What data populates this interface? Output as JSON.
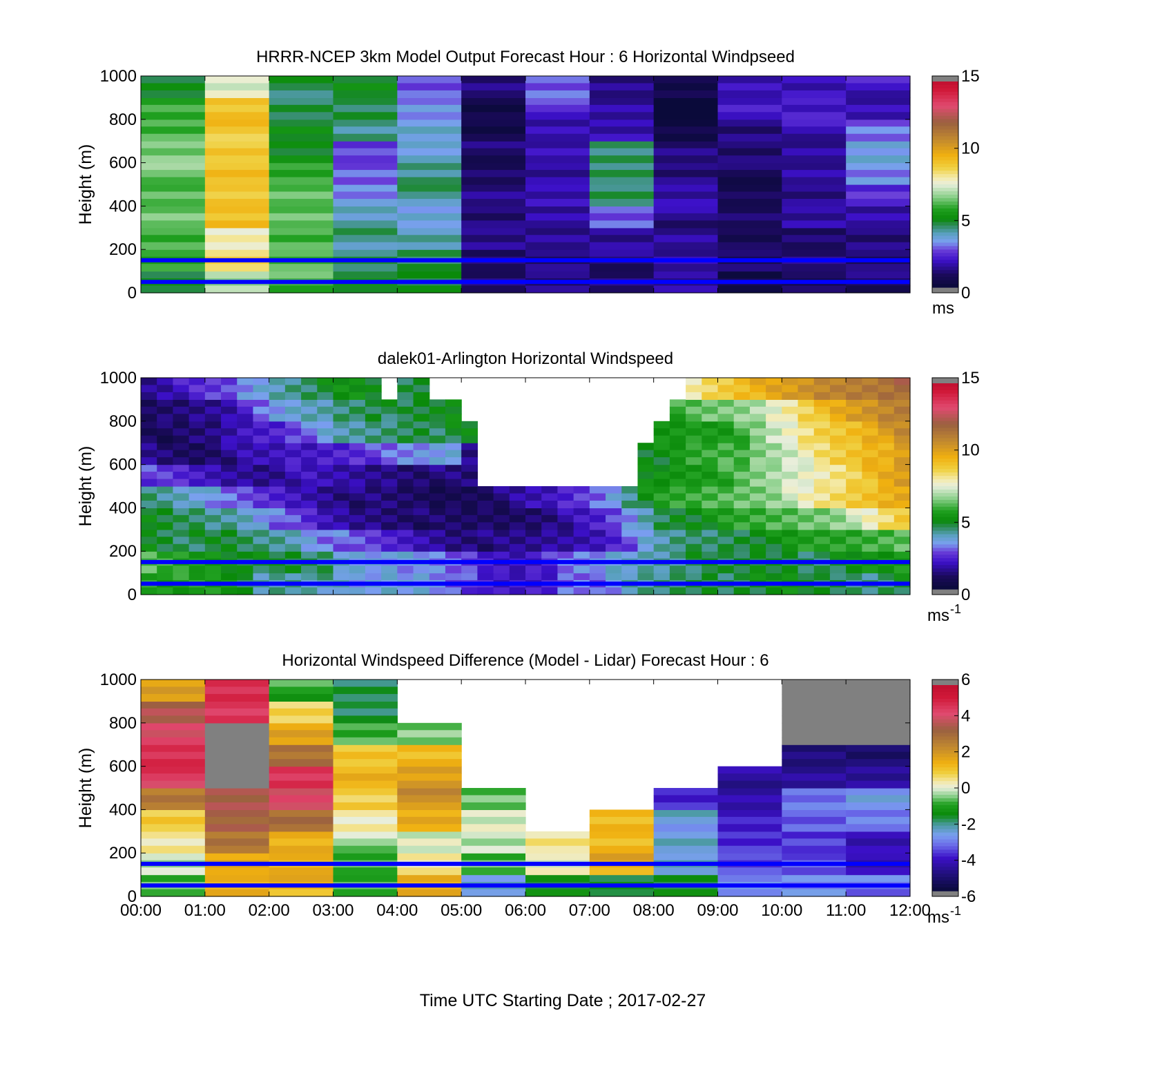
{
  "figure": {
    "xlabel": "Time UTC  Starting Date ; 2017-02-27",
    "x_tick_labels": [
      "00:00",
      "01:00",
      "02:00",
      "03:00",
      "04:00",
      "05:00",
      "06:00",
      "07:00",
      "08:00",
      "09:00",
      "10:00",
      "11:00",
      "12:00"
    ],
    "reference_line_color": "#0000ff",
    "missing_color": "#808080"
  },
  "chart_data": [
    {
      "type": "heatmap",
      "title": "HRRR-NCEP 3km Model Output   Forecast Hour : 6 Horizontal Windpseed",
      "ylabel": "Height (m)",
      "ylim": [
        0,
        1000
      ],
      "y_tick_labels": [
        "0",
        "200",
        "400",
        "600",
        "800",
        "1000"
      ],
      "colorbar": {
        "min": 0,
        "max": 15,
        "ticks": [
          "0",
          "5",
          "10",
          "15"
        ],
        "unit": "ms",
        "unit_sup": "",
        "scale": "speed"
      },
      "reference_lines_m": [
        150,
        50
      ],
      "x_hours": [
        0,
        1,
        2,
        3,
        4,
        5,
        6,
        7,
        8,
        9,
        10,
        11
      ],
      "heights_m": [
        50,
        150,
        250,
        350,
        450,
        550,
        650,
        750,
        850,
        950
      ],
      "values": [
        [
          5.0,
          7.0,
          6.0,
          4.8,
          4.6,
          1.0,
          1.2,
          1.2,
          1.6,
          0.6,
          1.0,
          1.0
        ],
        [
          5.5,
          8.5,
          6.0,
          4.5,
          4.6,
          1.2,
          1.4,
          1.2,
          1.4,
          0.8,
          1.2,
          1.0
        ],
        [
          6.0,
          8.0,
          6.2,
          4.2,
          3.8,
          1.2,
          1.4,
          1.4,
          1.6,
          0.8,
          1.2,
          1.4
        ],
        [
          6.2,
          9.0,
          6.2,
          3.8,
          3.6,
          1.2,
          1.8,
          3.0,
          1.4,
          0.8,
          1.4,
          1.6
        ],
        [
          6.2,
          9.0,
          6.4,
          3.4,
          4.2,
          1.2,
          1.6,
          4.4,
          1.6,
          0.8,
          1.4,
          2.6
        ],
        [
          6.4,
          9.0,
          5.6,
          2.8,
          4.2,
          1.0,
          1.6,
          4.6,
          1.4,
          0.8,
          1.4,
          3.0
        ],
        [
          6.4,
          9.0,
          5.0,
          2.8,
          3.8,
          1.0,
          1.6,
          4.2,
          1.2,
          1.0,
          1.6,
          3.6
        ],
        [
          6.2,
          9.0,
          4.8,
          4.0,
          3.6,
          0.4,
          1.8,
          1.8,
          0.6,
          1.4,
          1.8,
          2.8
        ],
        [
          5.8,
          9.0,
          4.6,
          4.6,
          3.4,
          0.6,
          2.4,
          1.4,
          -1.0,
          2.0,
          2.0,
          1.8
        ],
        [
          5.0,
          7.6,
          4.6,
          4.8,
          2.6,
          1.2,
          2.8,
          1.4,
          0.6,
          2.0,
          2.0,
          2.0
        ]
      ]
    },
    {
      "type": "heatmap",
      "title": "dalek01-Arlington  Horizontal Windspeed",
      "ylabel": "Height (m)",
      "ylim": [
        0,
        1000
      ],
      "y_tick_labels": [
        "0",
        "200",
        "400",
        "600",
        "800",
        "1000"
      ],
      "colorbar": {
        "min": 0,
        "max": 15,
        "ticks": [
          "0",
          "5",
          "10",
          "15"
        ],
        "unit": "ms",
        "unit_sup": "-1",
        "scale": "speed"
      },
      "reference_lines_m": [
        150,
        50
      ],
      "time_step_h": 0.25,
      "height_step_m": 100,
      "heights_m": [
        50,
        150,
        250,
        350,
        450,
        550,
        650,
        750,
        850,
        950
      ],
      "values": [
        [
          5.8,
          5.6,
          5.5,
          5.4,
          5.3,
          5.2,
          4.6,
          4.0,
          4.2,
          4.3,
          4.1,
          4.0,
          3.6,
          3.2,
          3.4,
          3.6,
          3.5,
          3.6,
          3.4,
          3.0,
          2.6,
          2.0,
          1.8,
          1.9,
          2.0,
          2.2,
          3.0,
          3.2,
          3.0,
          3.4,
          3.8,
          4.0,
          4.2,
          4.4,
          4.6,
          4.8,
          4.6,
          4.8,
          4.9,
          5.0,
          5.0,
          4.8,
          4.6,
          4.6,
          4.4,
          4.4,
          4.6,
          4.8
        ],
        [
          6.0,
          5.8,
          5.6,
          5.5,
          5.4,
          5.2,
          5.0,
          4.8,
          4.6,
          4.6,
          4.4,
          4.4,
          3.8,
          3.6,
          3.6,
          3.6,
          3.4,
          3.2,
          3.0,
          2.8,
          2.6,
          2.2,
          2.0,
          2.0,
          2.2,
          2.4,
          2.8,
          3.0,
          3.2,
          3.6,
          3.8,
          4.0,
          4.2,
          4.4,
          4.6,
          4.6,
          4.4,
          4.6,
          4.8,
          4.8,
          4.8,
          4.6,
          4.6,
          4.8,
          5.0,
          5.0,
          5.2,
          5.4
        ],
        [
          5.0,
          4.8,
          4.6,
          4.6,
          4.6,
          4.6,
          4.4,
          4.2,
          4.2,
          4.0,
          3.6,
          3.2,
          3.0,
          2.6,
          2.4,
          2.2,
          2.0,
          1.8,
          1.6,
          1.4,
          1.4,
          1.2,
          1.2,
          1.2,
          1.3,
          1.5,
          1.6,
          1.8,
          2.0,
          2.4,
          2.8,
          3.4,
          3.8,
          4.2,
          4.4,
          4.4,
          4.6,
          4.8,
          5.0,
          5.0,
          5.2,
          5.4,
          5.6,
          5.6,
          5.8,
          6.0,
          6.2,
          6.4
        ],
        [
          4.8,
          4.6,
          4.4,
          4.4,
          4.2,
          4.2,
          4.0,
          3.6,
          3.0,
          2.6,
          2.2,
          1.8,
          1.6,
          1.4,
          1.4,
          1.3,
          1.2,
          1.0,
          0.9,
          0.8,
          0.8,
          0.9,
          0.9,
          1.0,
          1.2,
          1.4,
          1.6,
          1.8,
          2.0,
          2.6,
          3.2,
          4.0,
          4.6,
          5.0,
          5.0,
          5.2,
          5.4,
          5.6,
          5.8,
          6.0,
          6.2,
          6.4,
          6.6,
          6.8,
          7.2,
          7.6,
          8.2,
          8.8
        ],
        [
          4.4,
          4.2,
          4.0,
          3.8,
          3.4,
          2.8,
          2.6,
          2.4,
          2.2,
          2.0,
          1.8,
          1.6,
          1.4,
          1.2,
          1.1,
          1.0,
          0.9,
          0.8,
          0.7,
          0.8,
          0.9,
          1.0,
          1.2,
          1.4,
          1.6,
          1.8,
          2.2,
          2.6,
          3.0,
          3.6,
          4.4,
          5.0,
          5.4,
          5.6,
          5.8,
          6.0,
          6.2,
          6.4,
          6.6,
          6.8,
          7.2,
          7.6,
          8.0,
          8.4,
          8.8,
          9.2,
          9.6,
          10.0
        ],
        [
          2.6,
          2.4,
          2.2,
          2.0,
          1.8,
          1.6,
          1.6,
          1.5,
          1.6,
          1.8,
          1.8,
          1.6,
          1.6,
          1.5,
          1.4,
          1.4,
          1.3,
          1.2,
          1.2,
          1.1,
          1.0,
          null,
          null,
          null,
          null,
          null,
          null,
          null,
          null,
          null,
          null,
          5.0,
          5.2,
          5.4,
          5.6,
          5.6,
          5.8,
          6.0,
          6.4,
          6.8,
          7.2,
          7.6,
          8.0,
          8.4,
          8.8,
          9.2,
          9.6,
          10.0
        ],
        [
          1.4,
          1.2,
          1.0,
          1.0,
          1.2,
          1.4,
          1.6,
          1.6,
          1.8,
          2.0,
          2.0,
          2.2,
          2.4,
          2.6,
          2.6,
          2.8,
          3.0,
          3.2,
          3.4,
          3.6,
          1.4,
          null,
          null,
          null,
          null,
          null,
          null,
          null,
          null,
          null,
          null,
          5.0,
          5.0,
          5.2,
          5.6,
          5.8,
          6.0,
          6.0,
          6.6,
          7.0,
          7.4,
          7.8,
          8.2,
          8.6,
          9.0,
          9.4,
          9.6,
          10.2
        ],
        [
          1.0,
          0.8,
          0.8,
          1.0,
          1.2,
          1.6,
          2.0,
          2.2,
          2.4,
          2.8,
          3.0,
          3.4,
          3.8,
          4.0,
          4.2,
          4.4,
          4.6,
          4.8,
          4.6,
          4.8,
          4.8,
          null,
          null,
          null,
          null,
          null,
          null,
          null,
          null,
          null,
          null,
          null,
          5.2,
          5.4,
          5.6,
          5.6,
          5.6,
          6.0,
          6.4,
          7.0,
          7.6,
          8.2,
          8.8,
          9.0,
          9.4,
          9.8,
          10.2,
          10.6
        ],
        [
          0.8,
          1.0,
          1.2,
          1.4,
          1.6,
          1.8,
          2.2,
          2.8,
          3.2,
          3.6,
          3.8,
          4.0,
          4.4,
          4.6,
          4.8,
          4.6,
          4.4,
          4.6,
          4.8,
          5.0,
          null,
          null,
          null,
          null,
          null,
          null,
          null,
          null,
          null,
          null,
          null,
          null,
          null,
          5.8,
          6.0,
          6.2,
          6.4,
          6.6,
          7.0,
          7.6,
          8.2,
          8.8,
          9.2,
          9.6,
          10.0,
          10.4,
          10.8,
          11.2
        ],
        [
          1.6,
          1.8,
          2.0,
          2.2,
          2.4,
          2.6,
          3.2,
          3.6,
          4.0,
          4.4,
          4.6,
          4.8,
          5.0,
          5.0,
          4.8,
          null,
          4.6,
          4.8,
          null,
          null,
          null,
          null,
          null,
          null,
          null,
          null,
          null,
          null,
          null,
          null,
          null,
          null,
          null,
          null,
          8.0,
          8.6,
          9.0,
          9.4,
          9.6,
          9.8,
          10.0,
          10.4,
          10.8,
          11.0,
          11.2,
          11.4,
          11.6,
          11.8
        ]
      ]
    },
    {
      "type": "heatmap",
      "title": "Horizontal Windspeed Difference (Model - Lidar) Forecast Hour : 6",
      "ylabel": "Height (m)",
      "ylim": [
        0,
        1000
      ],
      "y_tick_labels": [
        "0",
        "200",
        "400",
        "600",
        "800",
        "1000"
      ],
      "colorbar": {
        "min": -6,
        "max": 6,
        "ticks": [
          "-6",
          "-4",
          "-2",
          "0",
          "2",
          "4",
          "6"
        ],
        "unit": "ms",
        "unit_sup": "-1",
        "scale": "diff"
      },
      "reference_lines_m": [
        150,
        50
      ],
      "x_hours": [
        0,
        1,
        2,
        3,
        4,
        5,
        6,
        7,
        8,
        9,
        10,
        11
      ],
      "heights_m": [
        50,
        150,
        250,
        350,
        450,
        550,
        650,
        750,
        850,
        950
      ],
      "values": [
        [
          -0.6,
          1.6,
          1.4,
          -1.0,
          1.4,
          -2.6,
          -1.6,
          -1.6,
          -1.6,
          -2.8,
          -2.8,
          -3.2
        ],
        [
          -0.4,
          1.6,
          1.4,
          -0.8,
          0.4,
          -0.6,
          0.2,
          1.6,
          -2.6,
          -3.8,
          -3.6,
          -4.4
        ],
        [
          0.4,
          3.0,
          1.6,
          -0.4,
          -0.2,
          -0.4,
          0.4,
          1.2,
          -2.4,
          -3.8,
          -3.6,
          -4.2
        ],
        [
          0.8,
          3.2,
          3.0,
          0.2,
          1.6,
          0.0,
          null,
          1.4,
          -2.6,
          -4.2,
          -3.6,
          -3.2
        ],
        [
          2.8,
          3.6,
          4.4,
          1.0,
          2.2,
          -0.8,
          null,
          null,
          -4.0,
          -4.4,
          -3.2,
          -2.6
        ],
        [
          4.6,
          null,
          4.6,
          1.4,
          1.8,
          null,
          null,
          null,
          null,
          -4.6,
          -4.8,
          -4.8
        ],
        [
          4.8,
          null,
          3.0,
          1.2,
          1.4,
          null,
          null,
          null,
          null,
          null,
          -5.0,
          -5.2
        ],
        [
          4.4,
          null,
          1.6,
          -1.0,
          -0.6,
          null,
          null,
          null,
          null,
          null,
          null,
          null
        ],
        [
          3.6,
          4.6,
          0.8,
          -1.8,
          null,
          null,
          null,
          null,
          null,
          null,
          null,
          null
        ],
        [
          2.0,
          5.0,
          -1.0,
          -2.0,
          null,
          null,
          null,
          null,
          null,
          null,
          null,
          null
        ]
      ],
      "missing_blocks_note": "grey"
    }
  ]
}
